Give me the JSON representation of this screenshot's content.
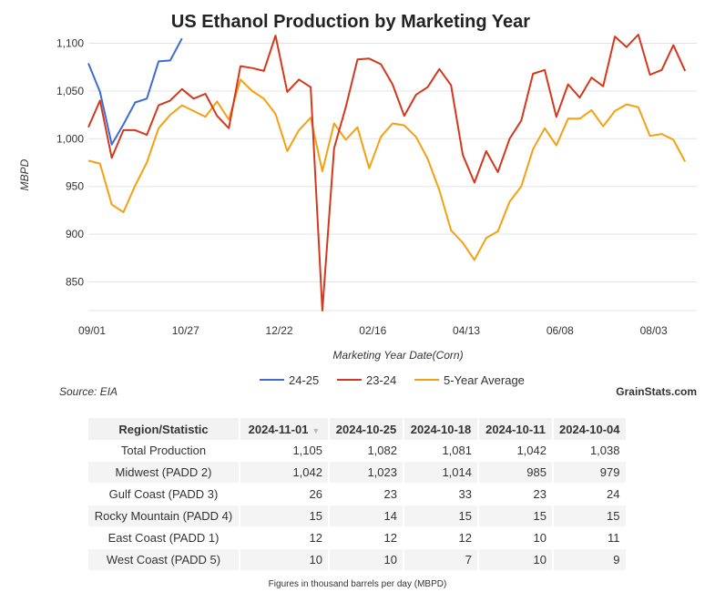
{
  "chart_data": {
    "type": "line",
    "title": "US Ethanol Production by Marketing Year",
    "xlabel": "Marketing Year Date(Corn)",
    "ylabel": "MBPD",
    "x_tick_labels": [
      "09/01",
      "10/27",
      "12/22",
      "02/16",
      "04/13",
      "06/08",
      "08/03"
    ],
    "x_tick_week_index": [
      0,
      8,
      16,
      24,
      32,
      40,
      48
    ],
    "y_ticks": [
      850,
      900,
      950,
      1000,
      1050,
      1100
    ],
    "y_tick_labels": [
      "850",
      "900",
      "950",
      "1,000",
      "1,050",
      "1,100"
    ],
    "ylim": [
      820,
      1110
    ],
    "x_week_range": [
      0,
      52
    ],
    "grid": "horizontal",
    "legend_position": "bottom",
    "series": [
      {
        "name": "24-25",
        "color": "#3b6cd4",
        "values": [
          1079,
          1049,
          994,
          1015,
          1038,
          1042,
          1081,
          1082,
          1105
        ]
      },
      {
        "name": "23-24",
        "color": "#d4381c",
        "values": [
          1012,
          1040,
          980,
          1009,
          1009,
          1004,
          1035,
          1040,
          1052,
          1042,
          1047,
          1024,
          1011,
          1076,
          1074,
          1071,
          1108,
          1049,
          1062,
          1054,
          820,
          990,
          1033,
          1083,
          1084,
          1078,
          1057,
          1024,
          1046,
          1054,
          1073,
          1056,
          983,
          954,
          987,
          965,
          1000,
          1019,
          1068,
          1072,
          1023,
          1057,
          1043,
          1064,
          1055,
          1107,
          1096,
          1109,
          1067,
          1072,
          1098,
          1071
        ]
      },
      {
        "name": "5-Year Average",
        "color": "#f5a00f",
        "values": [
          977,
          974,
          931,
          923,
          951,
          975,
          1011,
          1025,
          1035,
          1029,
          1023,
          1039,
          1020,
          1062,
          1050,
          1042,
          1026,
          987,
          1009,
          1022,
          966,
          1016,
          999,
          1012,
          969,
          1002,
          1016,
          1014,
          1002,
          979,
          946,
          904,
          891,
          873,
          896,
          903,
          934,
          950,
          989,
          1011,
          993,
          1021,
          1021,
          1030,
          1013,
          1029,
          1036,
          1033,
          1003,
          1005,
          999,
          976
        ]
      }
    ]
  },
  "source": "Source: EIA",
  "brand": "GrainStats.com",
  "table": {
    "headers": [
      "Region/Statistic",
      "2024-11-01",
      "2024-10-25",
      "2024-10-18",
      "2024-10-11",
      "2024-10-04"
    ],
    "rows": [
      [
        "Total Production",
        "1,105",
        "1,082",
        "1,081",
        "1,042",
        "1,038"
      ],
      [
        "Midwest (PADD 2)",
        "1,042",
        "1,023",
        "1,014",
        "985",
        "979"
      ],
      [
        "Gulf Coast (PADD 3)",
        "26",
        "23",
        "33",
        "23",
        "24"
      ],
      [
        "Rocky Mountain (PADD 4)",
        "15",
        "14",
        "15",
        "15",
        "15"
      ],
      [
        "East Coast (PADD 1)",
        "12",
        "12",
        "12",
        "10",
        "11"
      ],
      [
        "West Coast (PADD 5)",
        "10",
        "10",
        "7",
        "10",
        "9"
      ]
    ]
  },
  "footnote": "Figures in thousand barrels per day (MBPD)"
}
